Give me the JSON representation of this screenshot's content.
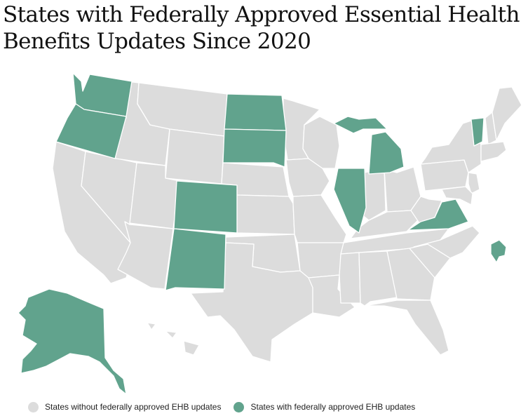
{
  "title": "States with Federally Approved Essential Health Benefits Updates Since 2020",
  "colors": {
    "without": "#dcdcdc",
    "with": "#61a38d",
    "border": "#ffffff"
  },
  "legend": {
    "without_label": "States without federally approved EHB updates",
    "with_label": "States with federally approved EHB updates"
  },
  "states_with_updates": [
    "Washington",
    "Oregon",
    "North Dakota",
    "South Dakota",
    "Colorado",
    "New Mexico",
    "Illinois",
    "Michigan",
    "Vermont",
    "Virginia",
    "District of Columbia",
    "Alaska"
  ]
}
